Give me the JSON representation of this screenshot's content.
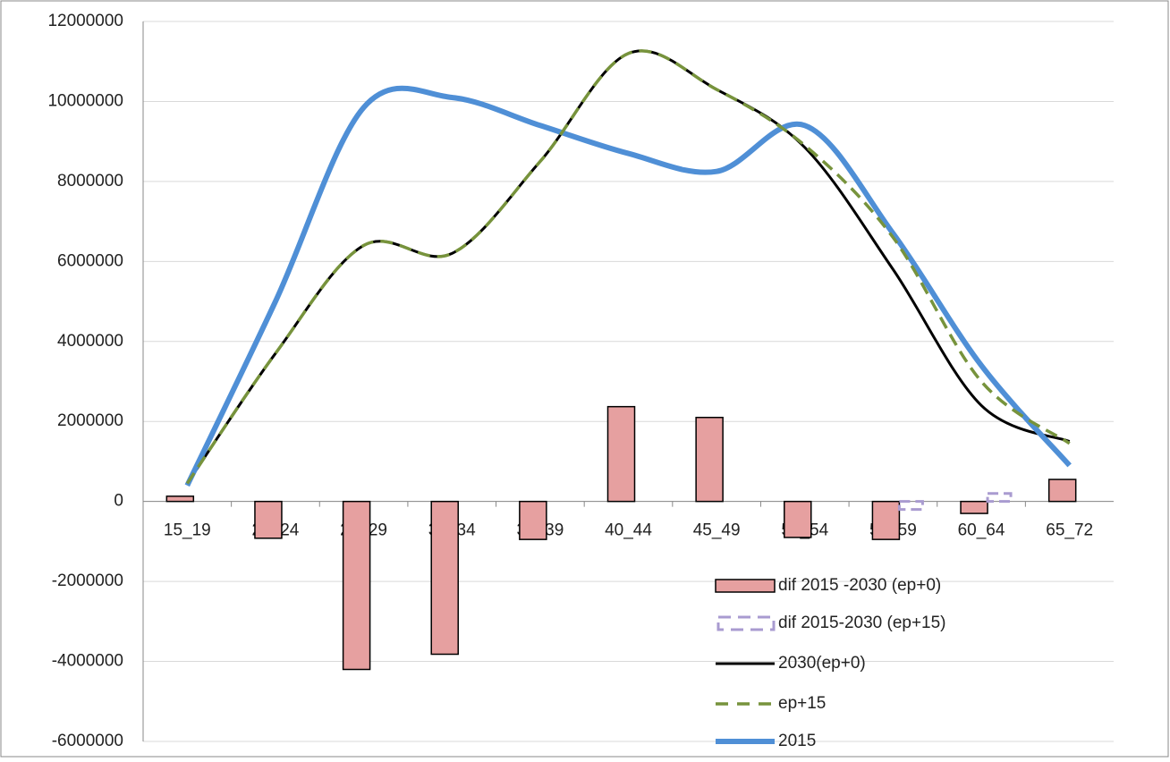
{
  "chart_data": {
    "type": "bar-line",
    "categories": [
      "15_19",
      "20_24",
      "25_29",
      "30_34",
      "35_39",
      "40_44",
      "45_49",
      "50_54",
      "55_59",
      "60_64",
      "65_72"
    ],
    "series": [
      {
        "name": "dif 2015 -2030 (ep+0)",
        "kind": "bar",
        "color": "#e6a0a0",
        "values": [
          130000,
          -920000,
          -4200000,
          -3820000,
          -950000,
          2370000,
          2100000,
          -900000,
          -950000,
          -300000,
          550000
        ]
      },
      {
        "name": "dif 2015-2030 (ep+15)",
        "kind": "dashed-bar",
        "color": "#a99bd0",
        "values": [
          0,
          0,
          0,
          0,
          0,
          0,
          0,
          0,
          -200000,
          200000,
          0
        ]
      },
      {
        "name": "2030(ep+0)",
        "kind": "line",
        "color": "#000000",
        "values": [
          450000,
          3700000,
          6400000,
          6200000,
          8500000,
          11200000,
          10300000,
          8850000,
          5800000,
          2400000,
          1500000
        ]
      },
      {
        "name": "ep+15",
        "kind": "dashed-line",
        "color": "#77933c",
        "values": [
          450000,
          3700000,
          6400000,
          6200000,
          8500000,
          11200000,
          10300000,
          8900000,
          6600000,
          3000000,
          1450000
        ]
      },
      {
        "name": "2015",
        "kind": "line",
        "color": "#4f8fd6",
        "values": [
          400000,
          5000000,
          9850000,
          10100000,
          9400000,
          8700000,
          8250000,
          9400000,
          6700000,
          3400000,
          900000
        ]
      }
    ],
    "ylim": [
      -6000000,
      12000000
    ],
    "yticks": [
      -6000000,
      -4000000,
      -2000000,
      0,
      2000000,
      4000000,
      6000000,
      8000000,
      10000000,
      12000000
    ],
    "grid": true
  }
}
